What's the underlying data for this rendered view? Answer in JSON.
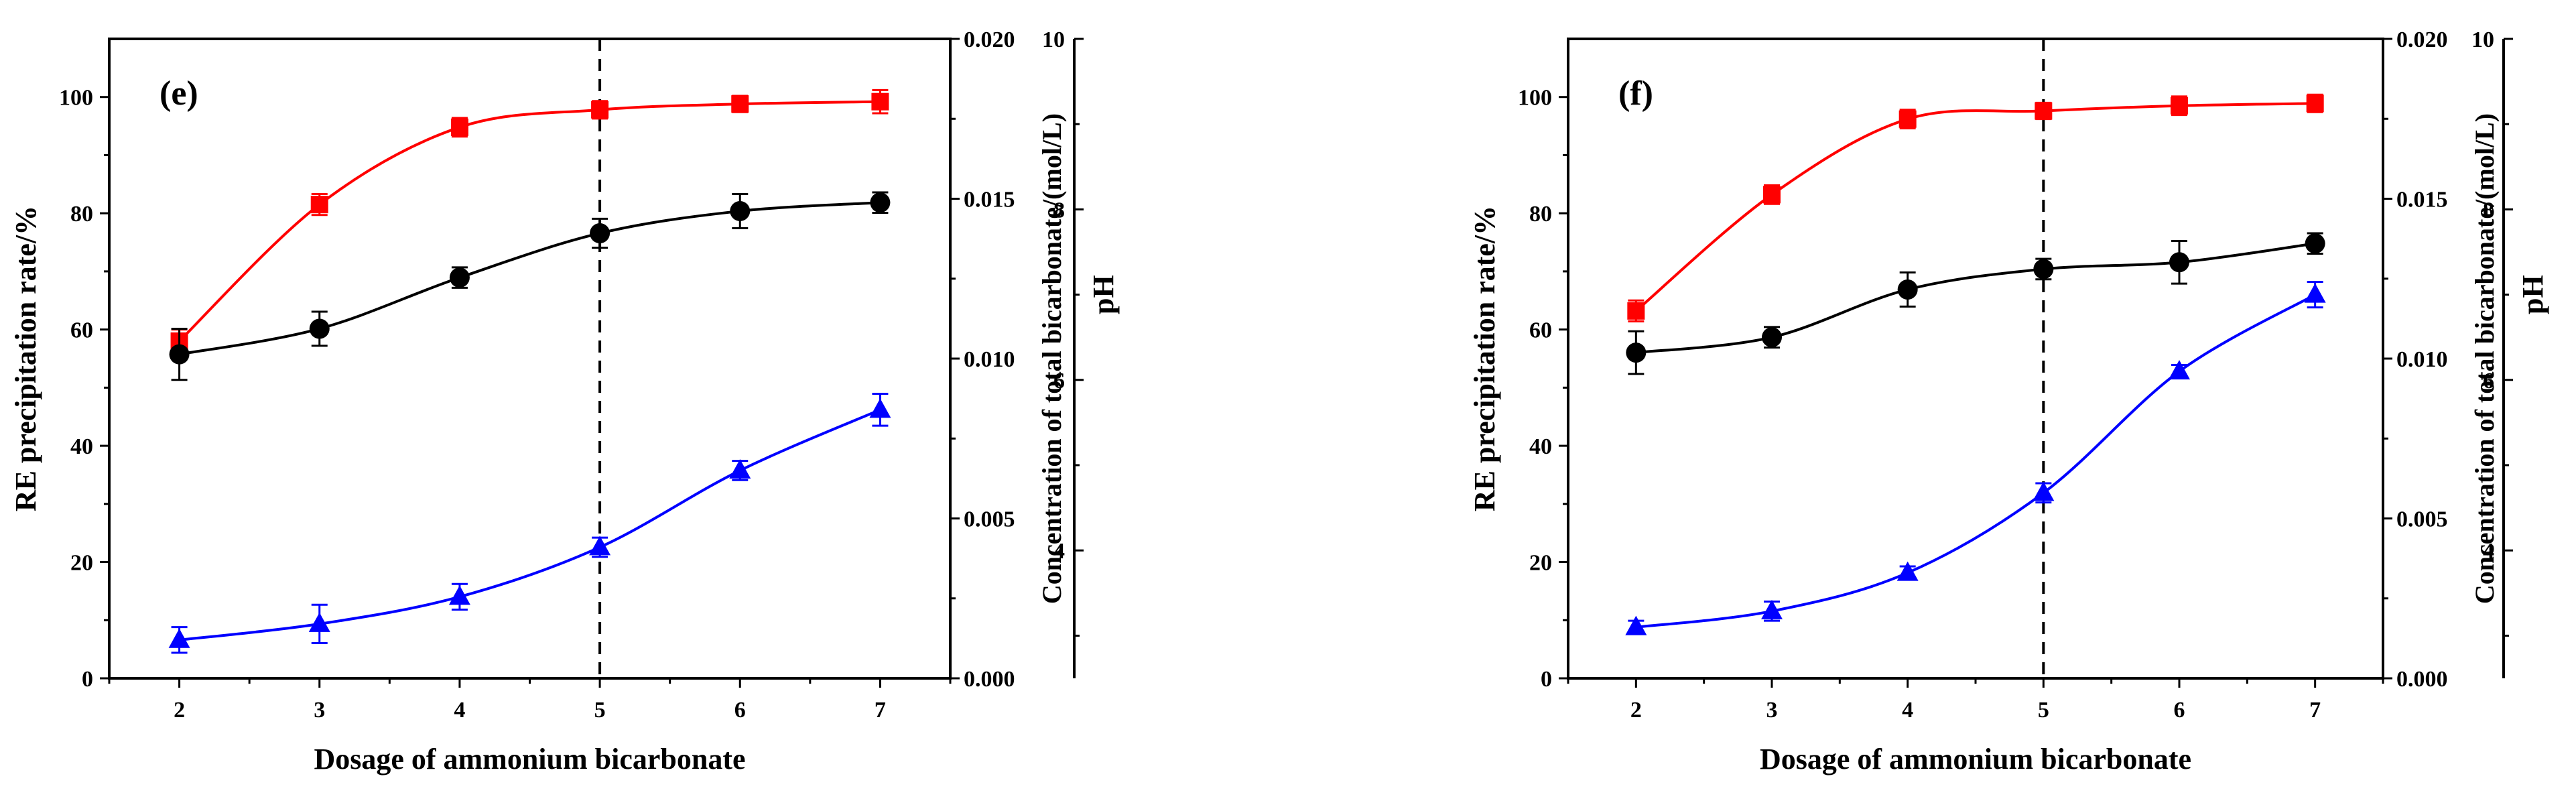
{
  "chart_data": [
    {
      "type": "line",
      "panel_label": "(e)",
      "xlabel": "Dosage of ammonium bicarbonate",
      "ylabel": "RE precipitation rate/%",
      "y2label": "Concentration of total bicarbonate/(mol/L)",
      "y3label": "pH",
      "x": [
        2,
        3,
        4,
        5,
        6,
        7
      ],
      "xlim": [
        1.5,
        7.5
      ],
      "ylim": [
        0,
        110
      ],
      "y2lim": [
        0,
        0.02
      ],
      "y3lim": [
        2.5,
        10
      ],
      "x_ticks": [
        "2",
        "3",
        "4",
        "5",
        "6",
        "7"
      ],
      "y_ticks": [
        "0",
        "20",
        "40",
        "60",
        "80",
        "100"
      ],
      "y2_ticks": [
        "0.000",
        "0.005",
        "0.010",
        "0.015",
        "0.020"
      ],
      "y3_ticks": [
        "4",
        "6",
        "8",
        "10"
      ],
      "vline_x": 5,
      "series": [
        {
          "name": "RE precipitation rate",
          "axis": "left",
          "color": "#ff0000",
          "marker": "square",
          "values": [
            58,
            81.5,
            94.8,
            97.8,
            98.8,
            99.2
          ],
          "errors": [
            2,
            1.8,
            1.6,
            1.5,
            1.4,
            2
          ]
        },
        {
          "name": "pH",
          "axis": "pH",
          "color": "#000000",
          "marker": "circle",
          "values": [
            6.3,
            6.6,
            7.2,
            7.72,
            7.98,
            8.08
          ],
          "errors": [
            0.3,
            0.2,
            0.12,
            0.17,
            0.2,
            0.12
          ]
        },
        {
          "name": "Concentration of total bicarbonate",
          "axis": "right",
          "color": "#0000ff",
          "marker": "triangle",
          "values": [
            0.0012,
            0.0017,
            0.00255,
            0.0041,
            0.0065,
            0.0084
          ],
          "errors": [
            0.0004,
            0.0006,
            0.0004,
            0.0003,
            0.0003,
            0.0005
          ]
        }
      ]
    },
    {
      "type": "line",
      "panel_label": "(f)",
      "xlabel": "Dosage of ammonium bicarbonate",
      "ylabel": "RE precipitation rate/%",
      "y2label": "Concentration of total bicarbonate/(mol/L)",
      "y3label": "pH",
      "x": [
        2,
        3,
        4,
        5,
        6,
        7
      ],
      "xlim": [
        1.5,
        7.5
      ],
      "ylim": [
        0,
        110
      ],
      "y2lim": [
        0,
        0.02
      ],
      "y3lim": [
        2.5,
        10
      ],
      "x_ticks": [
        "2",
        "3",
        "4",
        "5",
        "6",
        "7"
      ],
      "y_ticks": [
        "0",
        "20",
        "40",
        "60",
        "80",
        "100"
      ],
      "y2_ticks": [
        "0.000",
        "0.005",
        "0.010",
        "0.015",
        "0.020"
      ],
      "y3_ticks": [
        "4",
        "6",
        "8",
        "10"
      ],
      "vline_x": 5,
      "series": [
        {
          "name": "RE precipitation rate",
          "axis": "left",
          "color": "#ff0000",
          "marker": "square",
          "values": [
            63.2,
            83.2,
            96.2,
            97.6,
            98.5,
            98.9
          ],
          "errors": [
            1.8,
            1.6,
            1.6,
            1.4,
            1.6,
            1.5
          ]
        },
        {
          "name": "pH",
          "axis": "pH",
          "color": "#000000",
          "marker": "circle",
          "values": [
            6.32,
            6.5,
            7.06,
            7.3,
            7.38,
            7.6
          ],
          "errors": [
            0.25,
            0.12,
            0.2,
            0.12,
            0.25,
            0.12
          ]
        },
        {
          "name": "Concentration of total bicarbonate",
          "axis": "right",
          "color": "#0000ff",
          "marker": "triangle",
          "values": [
            0.0016,
            0.0021,
            0.0033,
            0.0058,
            0.0096,
            0.012
          ],
          "errors": [
            0.0002,
            0.0003,
            0.0002,
            0.0003,
            0.0002,
            0.0004
          ]
        }
      ]
    }
  ]
}
